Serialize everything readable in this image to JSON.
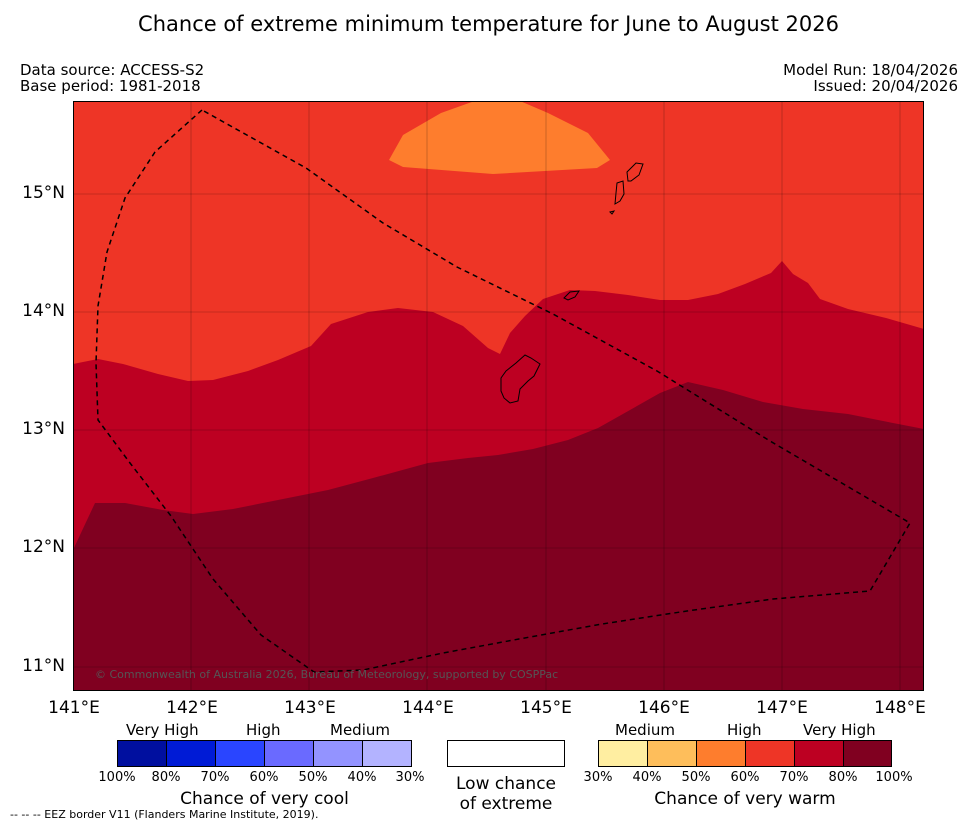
{
  "title": "Chance of extreme minimum temperature for June to August 2026",
  "header": {
    "data_source": "Data source: ACCESS-S2",
    "base_period": "Base period: 1981-2018",
    "model_run": "Model Run: 18/04/2026",
    "issued": "Issued: 20/04/2026"
  },
  "map": {
    "lat_labels": [
      "15°N",
      "14°N",
      "13°N",
      "12°N",
      "11°N"
    ],
    "lon_labels": [
      "141°E",
      "142°E",
      "143°E",
      "144°E",
      "145°E",
      "146°E",
      "147°E",
      "148°E"
    ],
    "copyright": "© Commonwealth of Australia 2026, Bureau of Meteorology, supported by COSPPac",
    "colors": {
      "band_50_60": "#fe7d2d",
      "band_60_70": "#ee3526",
      "band_70_80": "#bd0022",
      "band_80_100": "#800020",
      "land_outline": "#000000"
    }
  },
  "legend": {
    "cool": {
      "levels": [
        "Very High",
        "High",
        "Medium"
      ],
      "ticks": [
        "100%",
        "80%",
        "70%",
        "60%",
        "50%",
        "40%",
        "30%"
      ],
      "colors": [
        "#000f9f",
        "#001bd6",
        "#2a45ff",
        "#6a6aff",
        "#9393ff",
        "#b3b3ff"
      ],
      "caption": "Chance of very cool"
    },
    "low": {
      "caption_line1": "Low chance",
      "caption_line2": "of extreme"
    },
    "warm": {
      "levels": [
        "Medium",
        "High",
        "Very High"
      ],
      "ticks": [
        "30%",
        "40%",
        "50%",
        "60%",
        "70%",
        "80%",
        "100%"
      ],
      "colors": [
        "#ffeea1",
        "#febe5b",
        "#fe7d2d",
        "#ee3526",
        "#bd0022",
        "#800020"
      ],
      "caption": "Chance of very warm"
    }
  },
  "eez_note": "--  --  -- EEZ border V11 (Flanders Marine Institute, 2019)."
}
